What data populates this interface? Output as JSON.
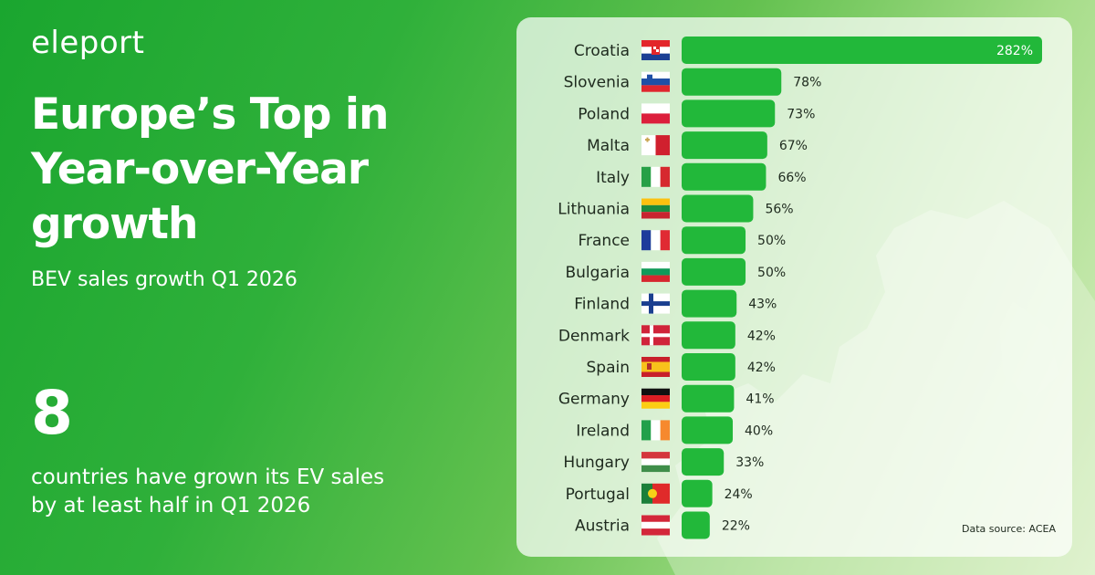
{
  "brand": {
    "logo": "eleport"
  },
  "header": {
    "title": "Europe’s Top in Year-over-Year growth",
    "subtitle": "BEV sales growth Q1 2026"
  },
  "stat": {
    "number": "8",
    "text": "countries have grown its EV sales by at least half in Q1 2026"
  },
  "colors": {
    "bar": "#22b83a",
    "accent": "#1aa62f",
    "text": "#1e2a1e"
  },
  "chart_data": {
    "type": "bar",
    "orientation": "horizontal",
    "categories": [
      "Croatia",
      "Slovenia",
      "Poland",
      "Malta",
      "Italy",
      "Lithuania",
      "France",
      "Bulgaria",
      "Finland",
      "Denmark",
      "Spain",
      "Germany",
      "Ireland",
      "Hungary",
      "Portugal",
      "Austria"
    ],
    "values": [
      282,
      78,
      73,
      67,
      66,
      56,
      50,
      50,
      43,
      42,
      42,
      41,
      40,
      33,
      24,
      22
    ],
    "value_suffix": "%",
    "flags": [
      "croatia-flag-icon",
      "slovenia-flag-icon",
      "poland-flag-icon",
      "malta-flag-icon",
      "italy-flag-icon",
      "lithuania-flag-icon",
      "france-flag-icon",
      "bulgaria-flag-icon",
      "finland-flag-icon",
      "denmark-flag-icon",
      "spain-flag-icon",
      "germany-flag-icon",
      "ireland-flag-icon",
      "hungary-flag-icon",
      "portugal-flag-icon",
      "austria-flag-icon"
    ],
    "title": "",
    "xlabel": "",
    "ylabel": "",
    "source": "Data source: ACEA"
  }
}
